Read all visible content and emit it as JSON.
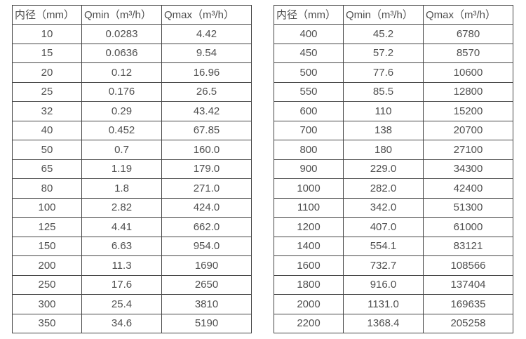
{
  "page": {
    "background_color": "#ffffff",
    "text_color": "#4f4f4f",
    "border_color": "#454545"
  },
  "tables": [
    {
      "name": "flow-table-small-diameters",
      "headers": [
        "内径（mm）",
        "Qmin（m³/h）",
        "Qmax（m³/h）"
      ],
      "rows": [
        [
          "10",
          "0.0283",
          "4.42"
        ],
        [
          "15",
          "0.0636",
          "9.54"
        ],
        [
          "20",
          "0.12",
          "16.96"
        ],
        [
          "25",
          "0.176",
          "26.5"
        ],
        [
          "32",
          "0.29",
          "43.42"
        ],
        [
          "40",
          "0.452",
          "67.85"
        ],
        [
          "50",
          "0.7",
          "160.0"
        ],
        [
          "65",
          "1.19",
          "179.0"
        ],
        [
          "80",
          "1.8",
          "271.0"
        ],
        [
          "100",
          "2.82",
          "424.0"
        ],
        [
          "125",
          "4.41",
          "662.0"
        ],
        [
          "150",
          "6.63",
          "954.0"
        ],
        [
          "200",
          "11.3",
          "1690"
        ],
        [
          "250",
          "17.6",
          "2650"
        ],
        [
          "300",
          "25.4",
          "3810"
        ],
        [
          "350",
          "34.6",
          "5190"
        ]
      ]
    },
    {
      "name": "flow-table-large-diameters",
      "headers": [
        "内径（mm）",
        "Qmin（m³/h）",
        "Qmax（m³/h）"
      ],
      "rows": [
        [
          "400",
          "45.2",
          "6780"
        ],
        [
          "450",
          "57.2",
          "8570"
        ],
        [
          "500",
          "77.6",
          "10600"
        ],
        [
          "550",
          "85.5",
          "12800"
        ],
        [
          "600",
          "110",
          "15200"
        ],
        [
          "700",
          "138",
          "20700"
        ],
        [
          "800",
          "180",
          "27100"
        ],
        [
          "900",
          "229.0",
          "34300"
        ],
        [
          "1000",
          "282.0",
          "42400"
        ],
        [
          "1100",
          "342.0",
          "51300"
        ],
        [
          "1200",
          "407.0",
          "61000"
        ],
        [
          "1400",
          "554.1",
          "83121"
        ],
        [
          "1600",
          "732.7",
          "108566"
        ],
        [
          "1800",
          "916.0",
          "137404"
        ],
        [
          "2000",
          "1131.0",
          "169635"
        ],
        [
          "2200",
          "1368.4",
          "205258"
        ]
      ]
    }
  ]
}
